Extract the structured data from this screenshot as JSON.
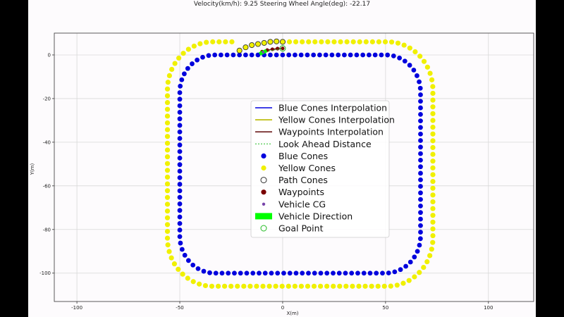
{
  "header": {
    "title": "Velocity(km/h): 9.25 Steering Wheel Angle(deg): -22.17"
  },
  "colors": {
    "blue": "#0000dd",
    "yellow": "#f0f000",
    "waypoint": "#7a0000",
    "waypoint_line": "#6b1a1a",
    "vehicle_direction": "#00ff00",
    "goal_point": "#22bb22",
    "cg": "#7744aa",
    "grid": "#d8d8d8"
  },
  "chart_data": {
    "type": "scatter",
    "title": "Velocity(km/h): 9.25 Steering Wheel Angle(deg): -22.17",
    "xlabel": "X(m)",
    "ylabel": "Y(m)",
    "xlim": [
      -111,
      122
    ],
    "ylim": [
      -113,
      10
    ],
    "xticks": [
      -100,
      -50,
      0,
      50,
      100
    ],
    "yticks": [
      0,
      -20,
      -40,
      -60,
      -80,
      -100
    ],
    "grid": true,
    "legend_position": "center",
    "legend": [
      {
        "label": "Blue Cones Interpolation",
        "kind": "line",
        "color": "#0000dd"
      },
      {
        "label": "Yellow Cones Interpolation",
        "kind": "line",
        "color": "#b8b800"
      },
      {
        "label": "Waypoints Interpolation",
        "kind": "line",
        "color": "#6b1a1a"
      },
      {
        "label": "Look Ahead Distance",
        "kind": "dashed",
        "color": "#22bb22"
      },
      {
        "label": "Blue Cones",
        "kind": "dot",
        "color": "#0000dd"
      },
      {
        "label": "Yellow Cones",
        "kind": "dot",
        "color": "#f0f000"
      },
      {
        "label": "Path Cones",
        "kind": "ring",
        "color": "#333333"
      },
      {
        "label": "Waypoints",
        "kind": "dot",
        "color": "#7a0000"
      },
      {
        "label": "Vehicle CG",
        "kind": "smalldot",
        "color": "#7744aa"
      },
      {
        "label": "Vehicle Direction",
        "kind": "rect",
        "color": "#00ff00"
      },
      {
        "label": "Goal Point",
        "kind": "ring",
        "color": "#22bb22"
      }
    ],
    "blue_cones": {
      "shape": "rounded-rectangle",
      "x_range": [
        -50,
        67
      ],
      "y_range": [
        -100,
        0
      ],
      "corner_radius": 17,
      "spacing": 3
    },
    "yellow_cones": {
      "shape": "rounded-rectangle",
      "x_range": [
        -56,
        73
      ],
      "y_range": [
        -106,
        6
      ],
      "corner_radius": 22,
      "spacing": 3.1,
      "omit_x_range": [
        -22,
        0
      ]
    },
    "path_cones": {
      "x": [
        -21,
        -18,
        -15,
        -12,
        -9,
        -6,
        -3,
        0
      ],
      "y": [
        2,
        3.5,
        4.5,
        5,
        5.5,
        6,
        6.2,
        6
      ]
    },
    "waypoints": {
      "x": [
        -10,
        -7.5,
        -5,
        -2.5,
        0
      ],
      "y": [
        1.5,
        2.2,
        2.6,
        2.9,
        3
      ]
    },
    "vehicle_cg": {
      "x": -9.5,
      "y": 1.3
    },
    "goal_point": {
      "x": 0,
      "y": 3
    },
    "vehicle_direction": {
      "x": -10,
      "y": 1,
      "heading_deg": 25
    }
  }
}
